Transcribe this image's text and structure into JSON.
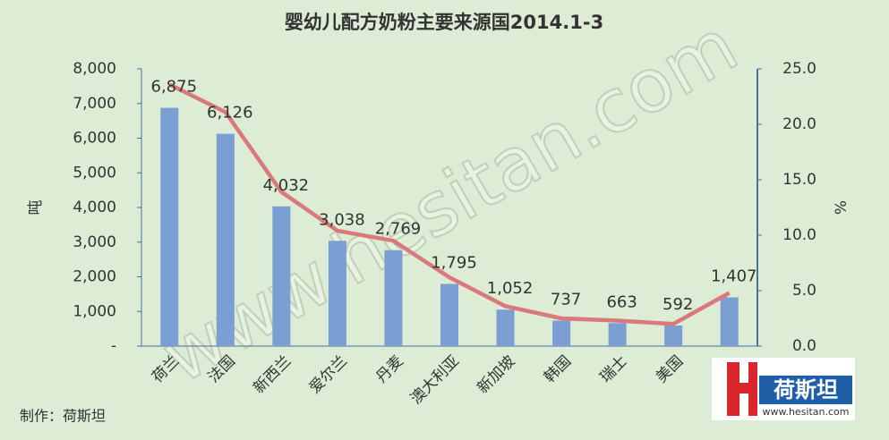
{
  "chart_data": {
    "type": "bar",
    "title": "婴幼儿配方奶粉主要来源国2014.1-3",
    "y_label": "吨",
    "y2_label": "%",
    "categories": [
      "荷兰",
      "法国",
      "新西兰",
      "爱尔兰",
      "丹麦",
      "澳大利亚",
      "新加坡",
      "韩国",
      "瑞士",
      "美国",
      null
    ],
    "series": [
      {
        "type": "bar",
        "color": "#7c9fd3",
        "values": [
          6875,
          6126,
          4032,
          3038,
          2769,
          1795,
          1052,
          737,
          663,
          592,
          1407
        ],
        "value_labels": [
          "6,875",
          "6,126",
          "4,032",
          "3,038",
          "2,769",
          "1,795",
          "1,052",
          "737",
          "663",
          "592",
          "1,407"
        ]
      },
      {
        "type": "line",
        "axis": "y2",
        "color": "#d9797c",
        "values": [
          23.6,
          21.1,
          13.9,
          10.4,
          9.5,
          6.2,
          3.6,
          2.5,
          2.3,
          2.0,
          4.8
        ]
      }
    ],
    "ylim": [
      0,
      8000
    ],
    "yticks": [
      {
        "value": 0,
        "label": "-"
      },
      {
        "value": 1000,
        "label": "1,000"
      },
      {
        "value": 2000,
        "label": "2,000"
      },
      {
        "value": 3000,
        "label": "3,000"
      },
      {
        "value": 4000,
        "label": "4,000"
      },
      {
        "value": 5000,
        "label": "5,000"
      },
      {
        "value": 6000,
        "label": "6,000"
      },
      {
        "value": 7000,
        "label": "7,000"
      },
      {
        "value": 8000,
        "label": "8,000"
      }
    ],
    "y2lim": [
      0,
      25
    ],
    "y2ticks": [
      {
        "value": 0,
        "label": "0.0"
      },
      {
        "value": 5,
        "label": "5.0"
      },
      {
        "value": 10,
        "label": "10.0"
      },
      {
        "value": 15,
        "label": "15.0"
      },
      {
        "value": 20,
        "label": "20.0"
      },
      {
        "value": 25,
        "label": "25.0"
      }
    ],
    "grid": false,
    "watermark": "www.hesitan.com",
    "footer": "制作：荷斯坦",
    "logo": {
      "name": "荷斯坦",
      "url": "www.hesitan.com"
    }
  }
}
